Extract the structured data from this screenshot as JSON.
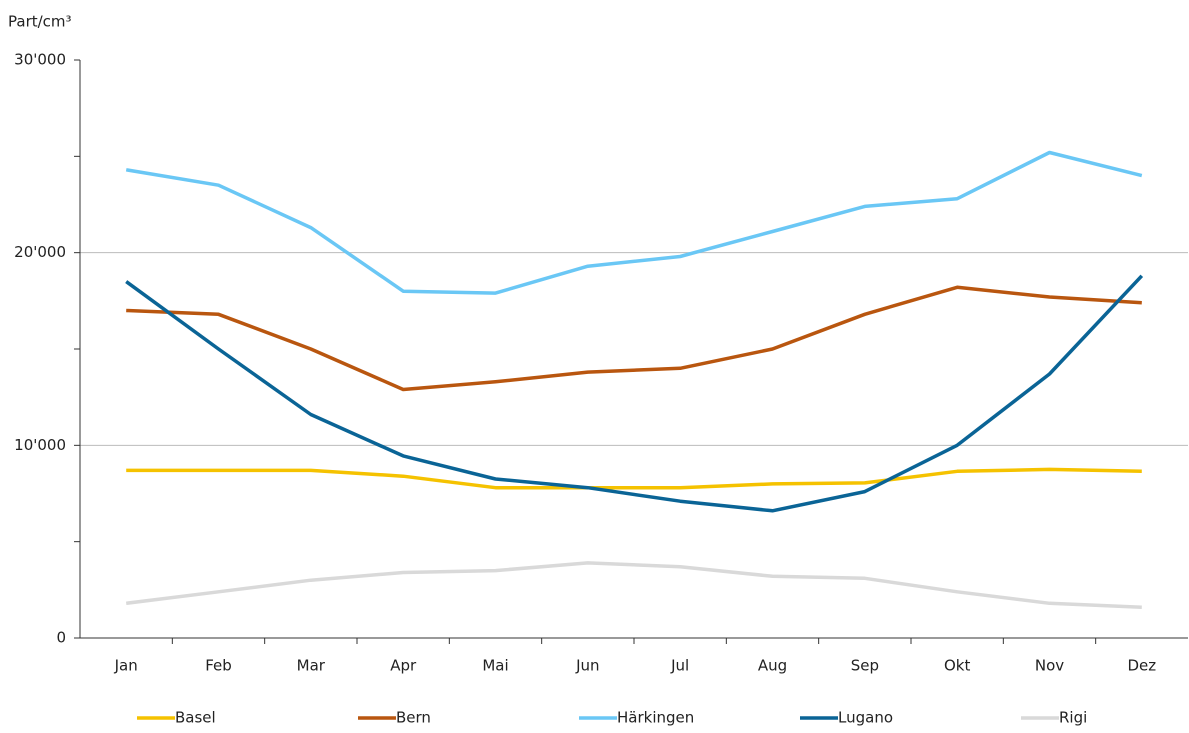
{
  "chart_data": {
    "type": "line",
    "y_label": "Part/cm³",
    "categories": [
      "Jan",
      "Feb",
      "Mar",
      "Apr",
      "Mai",
      "Jun",
      "Jul",
      "Aug",
      "Sep",
      "Okt",
      "Nov",
      "Dez"
    ],
    "series": [
      {
        "name": "Basel",
        "color": "#f5c200",
        "values": [
          8700,
          8700,
          8700,
          8400,
          7800,
          7800,
          7800,
          8000,
          8050,
          8650,
          8750,
          8650
        ]
      },
      {
        "name": "Bern",
        "color": "#b9560f",
        "values": [
          17000,
          16800,
          15000,
          12900,
          13300,
          13800,
          14000,
          15000,
          16800,
          18200,
          17700,
          17400
        ]
      },
      {
        "name": "Härkingen",
        "color": "#6ac7f5",
        "values": [
          24300,
          23500,
          21300,
          18000,
          17900,
          19300,
          19800,
          21100,
          22400,
          22800,
          25200,
          24000
        ]
      },
      {
        "name": "Lugano",
        "color": "#0a6496",
        "values": [
          18500,
          15000,
          11600,
          9450,
          8250,
          7800,
          7100,
          6600,
          7600,
          10000,
          13700,
          18800
        ]
      },
      {
        "name": "Rigi",
        "color": "#d9d9d9",
        "values": [
          1800,
          2400,
          3000,
          3400,
          3500,
          3900,
          3700,
          3200,
          3100,
          2400,
          1800,
          1600
        ]
      }
    ],
    "ylim": [
      0,
      30000
    ],
    "yticks": [
      0,
      {
        "value": 10000,
        "label": "10'000"
      },
      {
        "value": 20000,
        "label": "20'000"
      },
      {
        "value": 30000,
        "label": "30'000"
      }
    ],
    "minor_yticks": [
      5000,
      15000,
      25000
    ],
    "grid": true,
    "legend": "bottom"
  }
}
